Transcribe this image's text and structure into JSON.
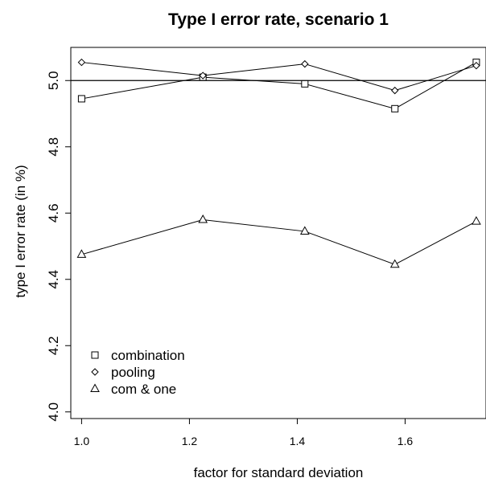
{
  "chart_data": {
    "type": "line",
    "title": "Type I error rate, scenario 1",
    "xlabel": "factor for standard deviation",
    "ylabel": "type I error rate (in %)",
    "xlim": [
      0.98,
      1.75
    ],
    "ylim": [
      3.98,
      5.1
    ],
    "xticks": [
      1.0,
      1.2,
      1.4,
      1.6
    ],
    "xtick_labels": [
      "1.0",
      "1.2",
      "1.4",
      "1.6"
    ],
    "yticks": [
      4.0,
      4.2,
      4.4,
      4.6,
      4.8,
      5.0
    ],
    "ytick_labels": [
      "4.0",
      "4.2",
      "4.4",
      "4.6",
      "4.8",
      "5.0"
    ],
    "reference_line": 5.0,
    "x": [
      1.0,
      1.225,
      1.414,
      1.581,
      1.732
    ],
    "series": [
      {
        "name": "combination",
        "marker": "square",
        "values": [
          4.945,
          5.01,
          4.99,
          4.915,
          5.055
        ]
      },
      {
        "name": "pooling",
        "marker": "diamond",
        "values": [
          5.055,
          5.015,
          5.05,
          4.97,
          5.045
        ]
      },
      {
        "name": "com & one",
        "marker": "triangle",
        "values": [
          4.475,
          4.58,
          4.545,
          4.445,
          4.575
        ]
      }
    ],
    "legend_position": "bottom-left",
    "grid": false,
    "color": "#000000"
  }
}
